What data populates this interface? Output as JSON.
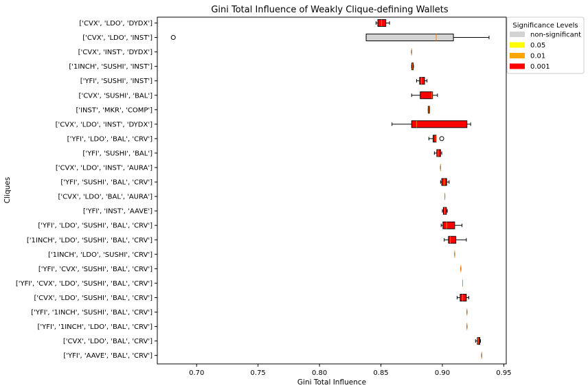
{
  "chart_data": {
    "type": "boxplot",
    "orientation": "horizontal",
    "title": "Gini Total Influence of Weakly Clique-defining Wallets",
    "xlabel": "Gini Total Influence",
    "ylabel": "Cliques",
    "xlim": [
      0.668,
      0.952
    ],
    "xticks": [
      0.7,
      0.75,
      0.8,
      0.85,
      0.9,
      0.95
    ],
    "xtick_labels": [
      "0.70",
      "0.75",
      "0.80",
      "0.85",
      "0.90",
      "0.95"
    ],
    "grid": false,
    "legend": {
      "title": "Significance Levels",
      "placement": "upper right, outside plot",
      "entries": [
        {
          "label": "non-significant",
          "color": "#d3d3d3"
        },
        {
          "label": "0.05",
          "color": "#ffff00"
        },
        {
          "label": "0.01",
          "color": "#ffa500"
        },
        {
          "label": "0.001",
          "color": "#ff0000"
        }
      ]
    },
    "median_color": "#ff7f0e",
    "series": [
      {
        "label": "['CVX', 'LDO', 'DYDX']",
        "significance": "0.001",
        "whislo": 0.846,
        "q1": 0.8475,
        "median": 0.8505,
        "q3": 0.854,
        "whishi": 0.857,
        "fliers": []
      },
      {
        "label": "['CVX', 'LDO', 'INST']",
        "significance": "non-significant",
        "whislo": 0.838,
        "q1": 0.838,
        "median": 0.895,
        "q3": 0.909,
        "whishi": 0.938,
        "fliers": [
          0.681
        ]
      },
      {
        "label": "['CVX', 'INST', 'DYDX']",
        "significance": "0.001",
        "whislo": 0.875,
        "q1": 0.875,
        "median": 0.875,
        "q3": 0.875,
        "whishi": 0.875,
        "fliers": []
      },
      {
        "label": "['1INCH', 'SUSHI', 'INST']",
        "significance": "0.001",
        "whislo": 0.875,
        "q1": 0.8752,
        "median": 0.8758,
        "q3": 0.8763,
        "whishi": 0.8765,
        "fliers": []
      },
      {
        "label": "['YFI', 'SUSHI', 'INST']",
        "significance": "0.001",
        "whislo": 0.879,
        "q1": 0.8815,
        "median": 0.883,
        "q3": 0.8855,
        "whishi": 0.8875,
        "fliers": []
      },
      {
        "label": "['CVX', 'SUSHI', 'BAL']",
        "significance": "0.001",
        "whislo": 0.875,
        "q1": 0.882,
        "median": 0.8915,
        "q3": 0.892,
        "whishi": 0.896,
        "fliers": []
      },
      {
        "label": "['INST', 'MKR', 'COMP']",
        "significance": "0.001",
        "whislo": 0.8885,
        "q1": 0.8885,
        "median": 0.889,
        "q3": 0.8895,
        "whishi": 0.8895,
        "fliers": []
      },
      {
        "label": "['CVX', 'LDO', 'INST', 'DYDX']",
        "significance": "0.001",
        "whislo": 0.859,
        "q1": 0.875,
        "median": 0.879,
        "q3": 0.92,
        "whishi": 0.923,
        "fliers": []
      },
      {
        "label": "['YFI', 'LDO', 'BAL', 'CRV']",
        "significance": "0.001",
        "whislo": 0.889,
        "q1": 0.8925,
        "median": 0.895,
        "q3": 0.895,
        "whishi": 0.895,
        "fliers": [
          0.8995
        ]
      },
      {
        "label": "['YFI', 'SUSHI', 'BAL']",
        "significance": "0.001",
        "whislo": 0.8935,
        "q1": 0.8955,
        "median": 0.8965,
        "q3": 0.8985,
        "whishi": 0.8995,
        "fliers": []
      },
      {
        "label": "['CVX', 'LDO', 'INST', 'AURA']",
        "significance": "0.001",
        "whislo": 0.8985,
        "q1": 0.8985,
        "median": 0.8985,
        "q3": 0.8985,
        "whishi": 0.8985,
        "fliers": []
      },
      {
        "label": "['YFI', 'SUSHI', 'BAL', 'CRV']",
        "significance": "0.001",
        "whislo": 0.8985,
        "q1": 0.8995,
        "median": 0.9015,
        "q3": 0.9035,
        "whishi": 0.9055,
        "fliers": []
      },
      {
        "label": "['CVX', 'LDO', 'BAL', 'AURA']",
        "significance": "0.001",
        "whislo": 0.902,
        "q1": 0.902,
        "median": 0.902,
        "q3": 0.902,
        "whishi": 0.902,
        "fliers": []
      },
      {
        "label": "['YFI', 'INST', 'AAVE']",
        "significance": "0.001",
        "whislo": 0.9,
        "q1": 0.9008,
        "median": 0.902,
        "q3": 0.9033,
        "whishi": 0.904,
        "fliers": []
      },
      {
        "label": "['YFI', 'LDO', 'SUSHI', 'BAL', 'CRV']",
        "significance": "0.001",
        "whislo": 0.899,
        "q1": 0.9005,
        "median": 0.9035,
        "q3": 0.91,
        "whishi": 0.916,
        "fliers": []
      },
      {
        "label": "['1INCH', 'LDO', 'SUSHI', 'BAL', 'CRV']",
        "significance": "0.001",
        "whislo": 0.9015,
        "q1": 0.905,
        "median": 0.9065,
        "q3": 0.911,
        "whishi": 0.9195,
        "fliers": []
      },
      {
        "label": "['1INCH', 'LDO', 'SUSHI', 'CRV']",
        "significance": "0.001",
        "whislo": 0.91,
        "q1": 0.91,
        "median": 0.91,
        "q3": 0.91,
        "whishi": 0.91,
        "fliers": []
      },
      {
        "label": "['YFI', 'CVX', 'SUSHI', 'BAL', 'CRV']",
        "significance": "0.001",
        "whislo": 0.915,
        "q1": 0.915,
        "median": 0.915,
        "q3": 0.915,
        "whishi": 0.915,
        "fliers": []
      },
      {
        "label": "['YFI', 'CVX', 'LDO', 'SUSHI', 'BAL', 'CRV']",
        "significance": "0.001",
        "whislo": 0.9165,
        "q1": 0.9165,
        "median": 0.9165,
        "q3": 0.9165,
        "whishi": 0.9165,
        "fliers": []
      },
      {
        "label": "['CVX', 'LDO', 'SUSHI', 'BAL', 'CRV']",
        "significance": "0.001",
        "whislo": 0.912,
        "q1": 0.9145,
        "median": 0.9165,
        "q3": 0.9195,
        "whishi": 0.9215,
        "fliers": []
      },
      {
        "label": "['YFI', '1INCH', 'SUSHI', 'BAL', 'CRV']",
        "significance": "0.001",
        "whislo": 0.92,
        "q1": 0.92,
        "median": 0.92,
        "q3": 0.92,
        "whishi": 0.92,
        "fliers": []
      },
      {
        "label": "['YFI', '1INCH', 'LDO', 'BAL', 'CRV']",
        "significance": "0.001",
        "whislo": 0.92,
        "q1": 0.92,
        "median": 0.92,
        "q3": 0.92,
        "whishi": 0.92,
        "fliers": []
      },
      {
        "label": "['CVX', 'LDO', 'BAL', 'CRV']",
        "significance": "0.001",
        "whislo": 0.927,
        "q1": 0.9285,
        "median": 0.929,
        "q3": 0.9305,
        "whishi": 0.931,
        "fliers": []
      },
      {
        "label": "['YFI', 'AAVE', 'BAL', 'CRV']",
        "significance": "0.001",
        "whislo": 0.932,
        "q1": 0.932,
        "median": 0.932,
        "q3": 0.932,
        "whishi": 0.932,
        "fliers": []
      }
    ]
  }
}
